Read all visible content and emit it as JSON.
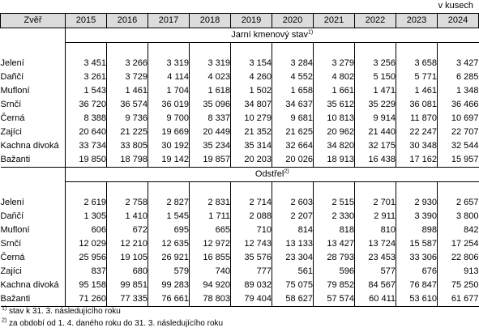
{
  "unit_label": "v kusech",
  "header": {
    "col0": "Zvěř",
    "years": [
      "2015",
      "2016",
      "2017",
      "2018",
      "2019",
      "2020",
      "2021",
      "2022",
      "2023",
      "2024"
    ]
  },
  "sections": [
    {
      "title": "Jarní kmenový stav",
      "mark": "1)",
      "rows": [
        {
          "name": "Jelení",
          "values": [
            "3 451",
            "3 266",
            "3 319",
            "3 319",
            "3 154",
            "3 284",
            "3 279",
            "3 256",
            "3 658",
            "3 427"
          ]
        },
        {
          "name": "Dañčí",
          "values": [
            "3 261",
            "3 729",
            "4 114",
            "4 023",
            "4 260",
            "4 552",
            "4 802",
            "5 150",
            "5 771",
            "6 285"
          ]
        },
        {
          "name": "Mufloní",
          "values": [
            "1 543",
            "1 461",
            "1 704",
            "1 618",
            "1 502",
            "1 658",
            "1 661",
            "1 471",
            "1 461",
            "1 348"
          ]
        },
        {
          "name": "Srnčí",
          "values": [
            "36 720",
            "36 574",
            "36 019",
            "35 096",
            "34 807",
            "34 637",
            "35 612",
            "35 229",
            "36 081",
            "36 466"
          ]
        },
        {
          "name": "Černá",
          "values": [
            "8 388",
            "9 736",
            "9 700",
            "8 337",
            "10 279",
            "9 681",
            "10 813",
            "9 914",
            "11 870",
            "10 697"
          ]
        },
        {
          "name": "Zajíci",
          "values": [
            "20 640",
            "21 225",
            "19 669",
            "20 449",
            "21 352",
            "21 625",
            "20 962",
            "21 440",
            "22 247",
            "22 707"
          ]
        },
        {
          "name": "Kachna divoká",
          "values": [
            "33 734",
            "33 805",
            "30 192",
            "35 234",
            "35 314",
            "32 664",
            "34 820",
            "32 175",
            "30 348",
            "32 544"
          ]
        },
        {
          "name": "Bažanti",
          "values": [
            "19 850",
            "18 798",
            "19 142",
            "19 857",
            "20 203",
            "20 026",
            "18 913",
            "16 438",
            "17 162",
            "15 957"
          ]
        }
      ]
    },
    {
      "title": "Odstřel",
      "mark": "2)",
      "rows": [
        {
          "name": "Jelení",
          "values": [
            "2 619",
            "2 758",
            "2 827",
            "2 831",
            "2 714",
            "2 603",
            "2 515",
            "2 701",
            "2 930",
            "2 657"
          ]
        },
        {
          "name": "Daňčí",
          "values": [
            "1 305",
            "1 410",
            "1 545",
            "1 711",
            "2 088",
            "2 207",
            "2 330",
            "2 911",
            "3 390",
            "3 800"
          ]
        },
        {
          "name": "Mufloní",
          "values": [
            "606",
            "672",
            "695",
            "665",
            "710",
            "814",
            "818",
            "810",
            "898",
            "842"
          ]
        },
        {
          "name": "Srnčí",
          "values": [
            "12 029",
            "12 210",
            "12 635",
            "12 972",
            "12 743",
            "13 133",
            "13 427",
            "13 724",
            "15 587",
            "17 254"
          ]
        },
        {
          "name": "Černá",
          "values": [
            "25 956",
            "19 105",
            "26 921",
            "16 855",
            "35 576",
            "23 304",
            "28 793",
            "23 453",
            "33 306",
            "22 806"
          ]
        },
        {
          "name": "Zajíci",
          "values": [
            "837",
            "680",
            "579",
            "740",
            "777",
            "561",
            "596",
            "577",
            "676",
            "913"
          ]
        },
        {
          "name": "Kachna divoká",
          "values": [
            "95 158",
            "99 851",
            "99 283",
            "94 920",
            "89 032",
            "75 075",
            "79 852",
            "84 567",
            "76 847",
            "75 250"
          ]
        },
        {
          "name": "Bažanti",
          "values": [
            "71 260",
            "77 335",
            "76 661",
            "78 803",
            "79 404",
            "58 627",
            "57 574",
            "60 411",
            "53 610",
            "61 677"
          ]
        }
      ]
    }
  ],
  "notes": [
    {
      "mark": "1)",
      "text": "stav k 31. 3. následujícího roku"
    },
    {
      "mark": "2)",
      "text": "za období od 1. 4. daného roku do 31. 3. následujícího roku"
    }
  ]
}
